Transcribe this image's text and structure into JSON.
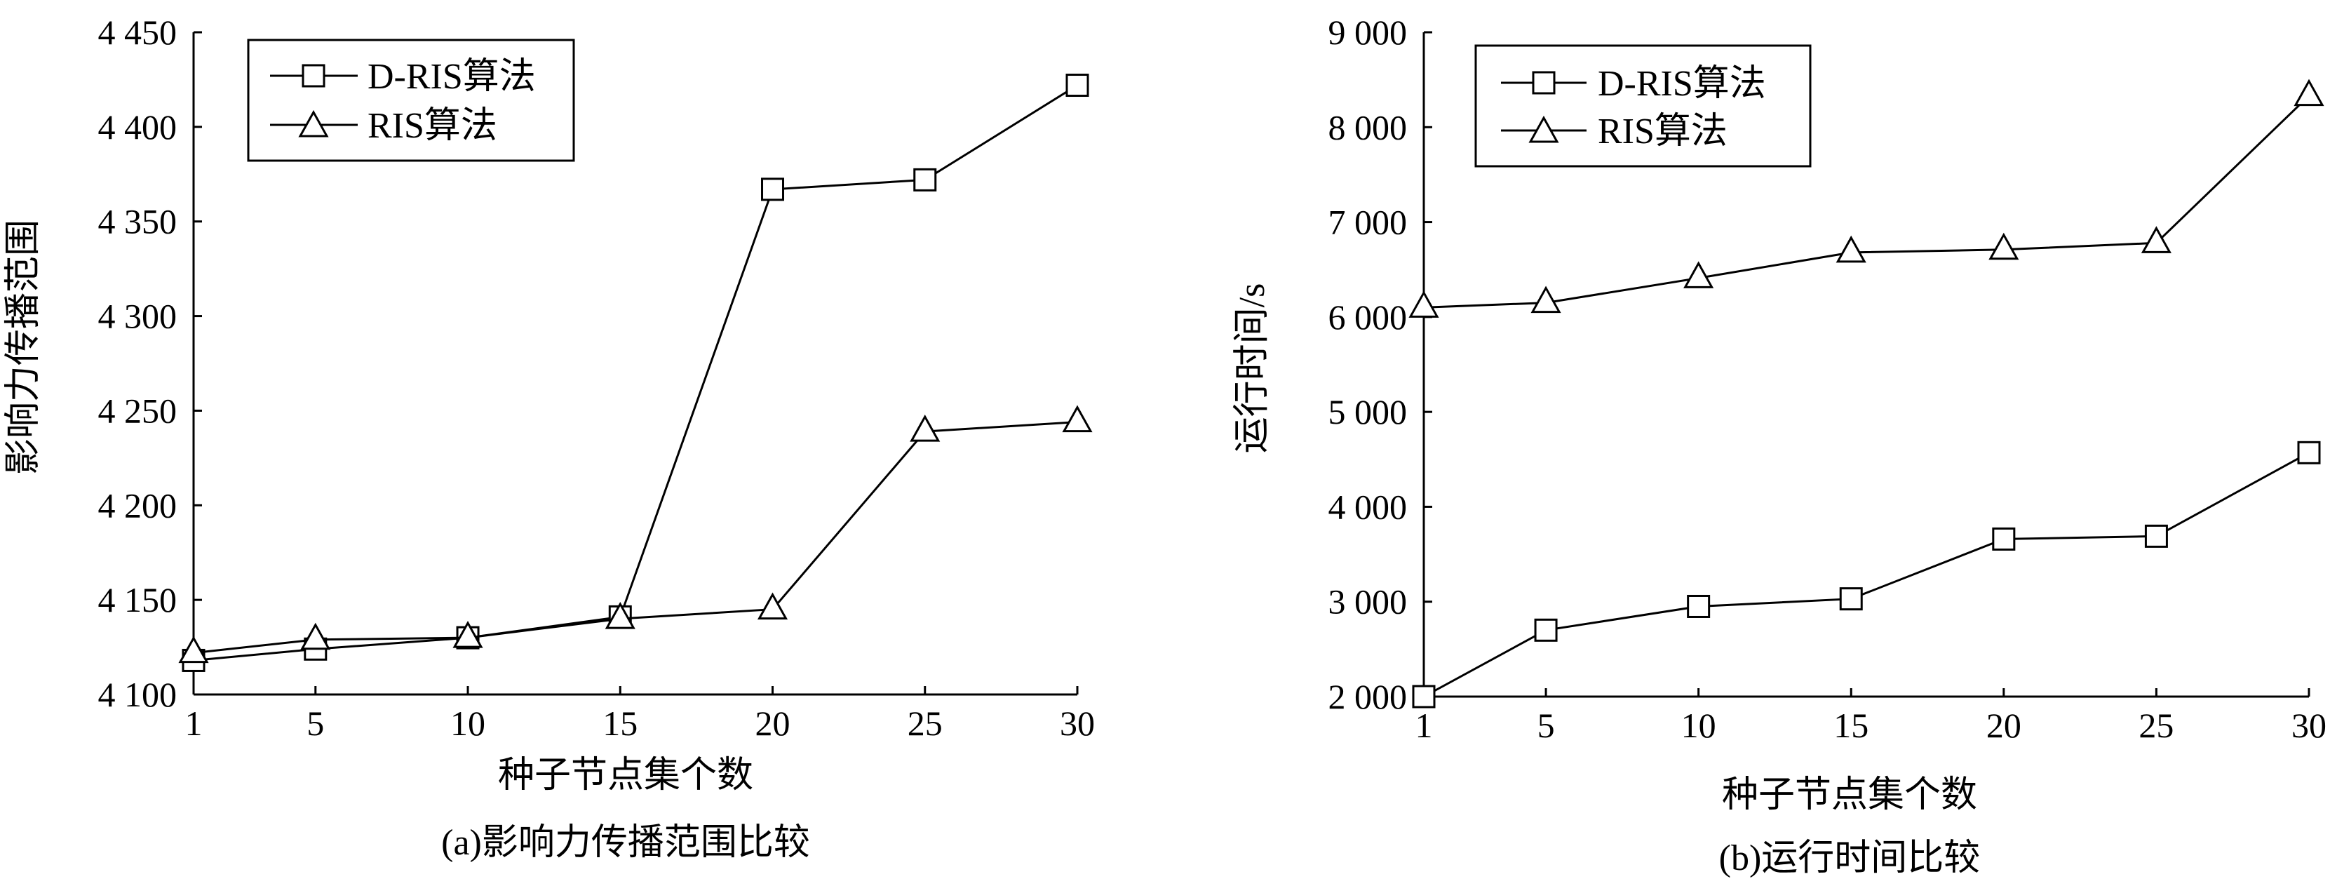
{
  "chart_data": [
    {
      "type": "line",
      "title": "",
      "caption": "(a)影响力传播范围比较",
      "xlabel": "种子节点集个数",
      "ylabel": "影响力传播范围",
      "x": [
        1,
        5,
        10,
        15,
        20,
        25,
        30
      ],
      "xticks": [
        "1",
        "5",
        "10",
        "15",
        "20",
        "25",
        "30"
      ],
      "yticks": [
        "4 100",
        "4 150",
        "4 200",
        "4 250",
        "4 300",
        "4 350",
        "4 400",
        "4 450"
      ],
      "ylim": [
        4100,
        4450
      ],
      "grid": false,
      "legend_position": "top-left",
      "series": [
        {
          "name": "D-RIS算法",
          "marker": "square",
          "values": [
            4118,
            4124,
            4130,
            4141,
            4367,
            4372,
            4422
          ]
        },
        {
          "name": "RIS算法",
          "marker": "triangle",
          "values": [
            4122,
            4129,
            4130,
            4140,
            4145,
            4239,
            4244
          ]
        }
      ]
    },
    {
      "type": "line",
      "title": "",
      "caption": "(b)运行时间比较",
      "xlabel": "种子节点集个数",
      "ylabel": "运行时间/s",
      "x": [
        1,
        5,
        10,
        15,
        20,
        25,
        30
      ],
      "xticks": [
        "1",
        "5",
        "10",
        "15",
        "20",
        "25",
        "30"
      ],
      "yticks": [
        "2 000",
        "3 000",
        "4 000",
        "5 000",
        "6 000",
        "7 000",
        "8 000",
        "9 000"
      ],
      "ylim": [
        2000,
        9000
      ],
      "grid": false,
      "legend_position": "top-left",
      "series": [
        {
          "name": "D-RIS算法",
          "marker": "square",
          "values": [
            2000,
            2700,
            2950,
            3030,
            3660,
            3690,
            4570
          ]
        },
        {
          "name": "RIS算法",
          "marker": "triangle",
          "values": [
            6100,
            6150,
            6410,
            6680,
            6710,
            6780,
            8330
          ]
        }
      ]
    }
  ]
}
